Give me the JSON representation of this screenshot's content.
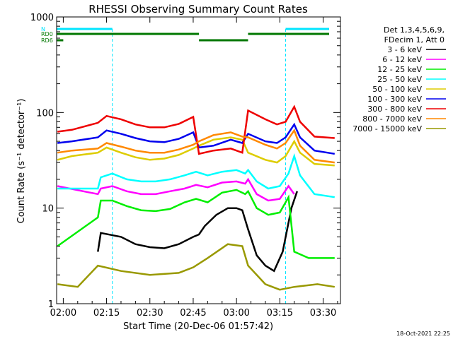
{
  "chart_data": {
    "type": "line",
    "title": "RHESSI Observing Summary Count Rates",
    "xlabel": "Start Time (20-Dec-06 01:57:42)",
    "ylabel": "Count Rate (s⁻¹ detector⁻¹)",
    "y_scale": "log",
    "ylim": [
      1,
      1000
    ],
    "xlim": [
      "01:57:42",
      "03:36:00"
    ],
    "x_ticks": [
      "02:00",
      "02:15",
      "02:30",
      "02:45",
      "03:00",
      "03:15",
      "03:30"
    ],
    "y_ticks": [
      "1",
      "10",
      "100",
      "1000"
    ],
    "legend_header": [
      "Det 1,3,4,5,6,9,",
      "FDecim 1, Att 0"
    ],
    "legend_position": "top-right outside",
    "timestamp": "18-Oct-2021 22:25",
    "flags": [
      {
        "label": "N",
        "color": "#00e5ff",
        "segments": [
          [
            "01:57:42",
            "02:17:00"
          ],
          [
            "03:17:00",
            "03:36:00"
          ]
        ]
      },
      {
        "label": "RD0",
        "color": "#007700",
        "segments": [
          [
            "01:57:42",
            "02:47:00"
          ],
          [
            "03:04:00",
            "03:36:00"
          ]
        ]
      },
      {
        "label": "RD6",
        "color": "#007700",
        "segments": [
          [
            "01:57:42",
            "02:00:00"
          ],
          [
            "02:47:00",
            "03:04:00"
          ]
        ]
      }
    ],
    "series": [
      {
        "name": "3 - 6 keV",
        "color": "#000000",
        "values": [
          [
            "02:12",
            3.5
          ],
          [
            "02:13",
            5.5
          ],
          [
            "02:20",
            5.0
          ],
          [
            "02:25",
            4.2
          ],
          [
            "02:30",
            3.9
          ],
          [
            "02:35",
            3.8
          ],
          [
            "02:40",
            4.2
          ],
          [
            "02:45",
            5.0
          ],
          [
            "02:47",
            5.3
          ],
          [
            "02:49",
            6.5
          ],
          [
            "02:53",
            8.5
          ],
          [
            "02:57",
            10
          ],
          [
            "03:00",
            10
          ],
          [
            "03:02",
            9.5
          ],
          [
            "03:04",
            6.0
          ],
          [
            "03:07",
            3.2
          ],
          [
            "03:10",
            2.5
          ],
          [
            "03:13",
            2.2
          ],
          [
            "03:16",
            3.5
          ],
          [
            "03:19",
            10
          ],
          [
            "03:21",
            15
          ]
        ]
      },
      {
        "name": "6 - 12 keV",
        "color": "#ff00ff",
        "values": [
          [
            "01:58",
            17
          ],
          [
            "02:12",
            14
          ],
          [
            "02:13",
            16
          ],
          [
            "02:17",
            17
          ],
          [
            "02:22",
            15
          ],
          [
            "02:27",
            14
          ],
          [
            "02:32",
            14
          ],
          [
            "02:37",
            15
          ],
          [
            "02:42",
            16
          ],
          [
            "02:46",
            17.5
          ],
          [
            "02:50",
            16.5
          ],
          [
            "02:55",
            18.5
          ],
          [
            "03:00",
            19
          ],
          [
            "03:03",
            18
          ],
          [
            "03:04",
            20
          ],
          [
            "03:07",
            14
          ],
          [
            "03:11",
            12
          ],
          [
            "03:15",
            12.5
          ],
          [
            "03:18",
            17
          ],
          [
            "03:20",
            14
          ]
        ]
      },
      {
        "name": "12 - 25 keV",
        "color": "#00ee00",
        "values": [
          [
            "01:58",
            4
          ],
          [
            "02:12",
            8
          ],
          [
            "02:13",
            12
          ],
          [
            "02:17",
            12
          ],
          [
            "02:22",
            10.5
          ],
          [
            "02:27",
            9.5
          ],
          [
            "02:32",
            9.3
          ],
          [
            "02:37",
            9.8
          ],
          [
            "02:42",
            11.5
          ],
          [
            "02:46",
            12.5
          ],
          [
            "02:50",
            11.5
          ],
          [
            "02:55",
            14.5
          ],
          [
            "03:00",
            15.5
          ],
          [
            "03:03",
            14
          ],
          [
            "03:04",
            15
          ],
          [
            "03:07",
            10
          ],
          [
            "03:11",
            8.5
          ],
          [
            "03:15",
            9
          ],
          [
            "03:18",
            13
          ],
          [
            "03:20",
            3.5
          ],
          [
            "03:25",
            3.0
          ],
          [
            "03:34",
            3.0
          ]
        ]
      },
      {
        "name": "25 - 50 keV",
        "color": "#00ffff",
        "values": [
          [
            "01:58",
            16
          ],
          [
            "02:12",
            16
          ],
          [
            "02:13",
            21
          ],
          [
            "02:17",
            23
          ],
          [
            "02:22",
            20
          ],
          [
            "02:27",
            19
          ],
          [
            "02:32",
            19
          ],
          [
            "02:37",
            20
          ],
          [
            "02:42",
            22
          ],
          [
            "02:46",
            24
          ],
          [
            "02:50",
            22
          ],
          [
            "02:55",
            24
          ],
          [
            "03:00",
            25
          ],
          [
            "03:03",
            23
          ],
          [
            "03:04",
            25
          ],
          [
            "03:07",
            19
          ],
          [
            "03:11",
            16
          ],
          [
            "03:15",
            17
          ],
          [
            "03:18",
            23
          ],
          [
            "03:20",
            35
          ],
          [
            "03:22",
            22
          ],
          [
            "03:27",
            14
          ],
          [
            "03:34",
            13
          ]
        ]
      },
      {
        "name": "50 - 100 keV",
        "color": "#ddcc00",
        "values": [
          [
            "01:58",
            32
          ],
          [
            "02:03",
            35
          ],
          [
            "02:12",
            38
          ],
          [
            "02:15",
            43
          ],
          [
            "02:20",
            38
          ],
          [
            "02:25",
            34
          ],
          [
            "02:30",
            32
          ],
          [
            "02:35",
            33
          ],
          [
            "02:40",
            36
          ],
          [
            "02:45",
            42
          ],
          [
            "02:47",
            45
          ],
          [
            "02:52",
            52
          ],
          [
            "02:58",
            55
          ],
          [
            "03:02",
            52
          ],
          [
            "03:04",
            38
          ],
          [
            "03:10",
            32
          ],
          [
            "03:14",
            30
          ],
          [
            "03:17",
            35
          ],
          [
            "03:20",
            50
          ],
          [
            "03:22",
            38
          ],
          [
            "03:27",
            29
          ],
          [
            "03:34",
            28
          ]
        ]
      },
      {
        "name": "100 - 300 keV",
        "color": "#0000ee",
        "values": [
          [
            "01:58",
            48
          ],
          [
            "02:03",
            50
          ],
          [
            "02:12",
            55
          ],
          [
            "02:15",
            65
          ],
          [
            "02:20",
            60
          ],
          [
            "02:25",
            54
          ],
          [
            "02:30",
            50
          ],
          [
            "02:35",
            49
          ],
          [
            "02:40",
            53
          ],
          [
            "02:45",
            62
          ],
          [
            "02:47",
            43
          ],
          [
            "02:52",
            45
          ],
          [
            "02:58",
            52
          ],
          [
            "03:02",
            48
          ],
          [
            "03:04",
            60
          ],
          [
            "03:10",
            50
          ],
          [
            "03:14",
            48
          ],
          [
            "03:17",
            55
          ],
          [
            "03:20",
            75
          ],
          [
            "03:22",
            55
          ],
          [
            "03:27",
            40
          ],
          [
            "03:34",
            37
          ]
        ]
      },
      {
        "name": "300 - 800 keV",
        "color": "#ee0000",
        "values": [
          [
            "01:58",
            63
          ],
          [
            "02:03",
            66
          ],
          [
            "02:12",
            78
          ],
          [
            "02:15",
            92
          ],
          [
            "02:20",
            85
          ],
          [
            "02:25",
            75
          ],
          [
            "02:30",
            70
          ],
          [
            "02:35",
            70
          ],
          [
            "02:40",
            76
          ],
          [
            "02:45",
            90
          ],
          [
            "02:47",
            37
          ],
          [
            "02:52",
            40
          ],
          [
            "02:58",
            42
          ],
          [
            "03:02",
            38
          ],
          [
            "03:04",
            105
          ],
          [
            "03:10",
            85
          ],
          [
            "03:14",
            75
          ],
          [
            "03:17",
            80
          ],
          [
            "03:20",
            115
          ],
          [
            "03:22",
            80
          ],
          [
            "03:27",
            56
          ],
          [
            "03:34",
            54
          ]
        ]
      },
      {
        "name": "800 - 7000 keV",
        "color": "#ff8800",
        "values": [
          [
            "01:58",
            38
          ],
          [
            "02:03",
            40
          ],
          [
            "02:12",
            42
          ],
          [
            "02:15",
            48
          ],
          [
            "02:20",
            44
          ],
          [
            "02:25",
            40
          ],
          [
            "02:30",
            38
          ],
          [
            "02:35",
            38
          ],
          [
            "02:40",
            41
          ],
          [
            "02:45",
            46
          ],
          [
            "02:47",
            50
          ],
          [
            "02:52",
            58
          ],
          [
            "02:58",
            62
          ],
          [
            "03:02",
            56
          ],
          [
            "03:04",
            55
          ],
          [
            "03:10",
            46
          ],
          [
            "03:14",
            42
          ],
          [
            "03:17",
            48
          ],
          [
            "03:20",
            65
          ],
          [
            "03:22",
            45
          ],
          [
            "03:27",
            32
          ],
          [
            "03:34",
            30
          ]
        ]
      },
      {
        "name": "7000 - 15000 keV",
        "color": "#999900",
        "values": [
          [
            "01:58",
            1.6
          ],
          [
            "02:05",
            1.5
          ],
          [
            "02:12",
            2.5
          ],
          [
            "02:20",
            2.2
          ],
          [
            "02:30",
            2.0
          ],
          [
            "02:40",
            2.1
          ],
          [
            "02:45",
            2.4
          ],
          [
            "02:50",
            3.0
          ],
          [
            "02:57",
            4.2
          ],
          [
            "03:02",
            4.0
          ],
          [
            "03:04",
            2.5
          ],
          [
            "03:10",
            1.6
          ],
          [
            "03:15",
            1.4
          ],
          [
            "03:20",
            1.5
          ],
          [
            "03:28",
            1.6
          ],
          [
            "03:34",
            1.5
          ]
        ]
      }
    ]
  }
}
